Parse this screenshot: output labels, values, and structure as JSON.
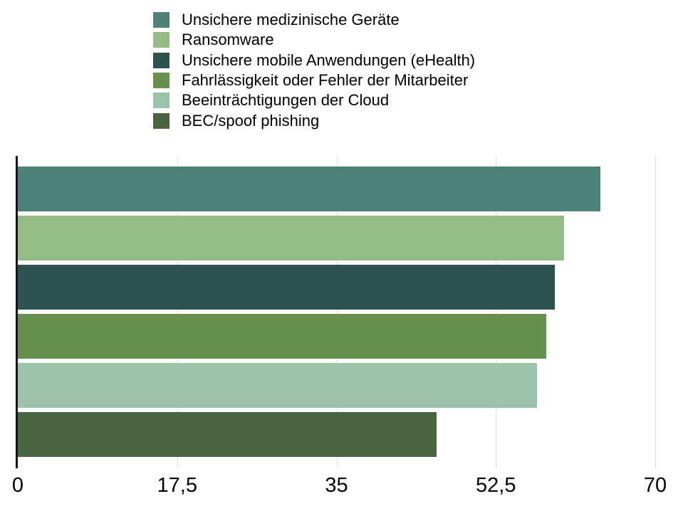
{
  "chart_data": {
    "type": "bar",
    "orientation": "horizontal",
    "categories": [
      "Unsichere medizinische Geräte",
      "Ransomware",
      "Unsichere mobile Anwendungen (eHealth)",
      "Fahrlässigkeit oder Fehler der Mitarbeiter",
      "Beeinträchtigungen der Cloud",
      "BEC/spoof phishing"
    ],
    "values": [
      64,
      60,
      59,
      58,
      57,
      46
    ],
    "colors": [
      "#4d8076",
      "#93bc87",
      "#2e534f",
      "#66904e",
      "#9cc2aa",
      "#496440"
    ],
    "xlim": [
      0,
      70
    ],
    "xtick_values": [
      0,
      17.5,
      35,
      52.5,
      70
    ],
    "xtick_labels": [
      "0",
      "17,5",
      "35",
      "52,5",
      "70"
    ],
    "legend_position": "top-left",
    "grid": "vertical",
    "background_color": "#ffffff",
    "axis_line_color": "#151515",
    "gridline_color": "#d9d9d9",
    "tick_label_color": "#000000",
    "legend_text_color": "#000000"
  }
}
